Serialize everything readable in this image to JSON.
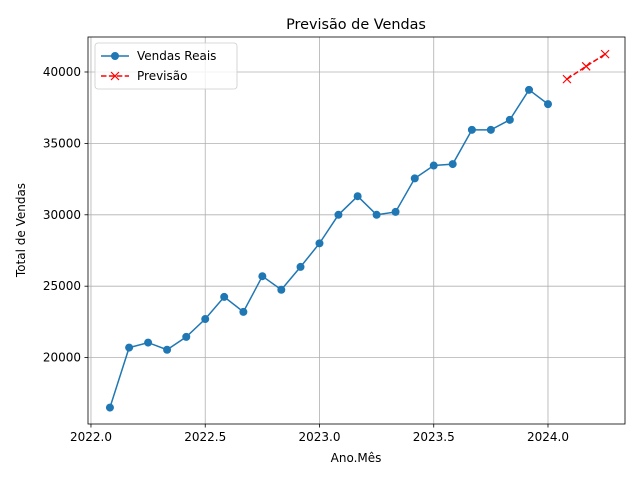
{
  "chart_data": {
    "type": "line",
    "title": "Previsão de Vendas",
    "xlabel": "Ano.Mês",
    "ylabel": "Total de Vendas",
    "xlim": [
      2021.987,
      2024.337
    ],
    "ylim": [
      15350,
      42450
    ],
    "x_ticks": [
      "2022.0",
      "2022.5",
      "2023.0",
      "2023.5",
      "2024.0"
    ],
    "y_ticks": [
      "20000",
      "25000",
      "30000",
      "35000",
      "40000"
    ],
    "x_tick_values": [
      2022.0,
      2022.5,
      2023.0,
      2023.5,
      2024.0
    ],
    "y_tick_values": [
      20000,
      25000,
      30000,
      35000,
      40000
    ],
    "grid": true,
    "legend_position": "top-left",
    "series": [
      {
        "name": "Vendas Reais",
        "color": "#1f77b4",
        "line_style": "solid",
        "marker": "circle",
        "x": [
          2022.083,
          2022.167,
          2022.25,
          2022.333,
          2022.417,
          2022.5,
          2022.583,
          2022.667,
          2022.75,
          2022.833,
          2022.917,
          2023.0,
          2023.083,
          2023.167,
          2023.25,
          2023.333,
          2023.417,
          2023.5,
          2023.583,
          2023.667,
          2023.75,
          2023.833,
          2023.917,
          2024.0
        ],
        "values": [
          16500,
          20700,
          21050,
          20550,
          21450,
          22700,
          24250,
          23200,
          25700,
          24750,
          26350,
          28000,
          30000,
          31300,
          30000,
          30200,
          32550,
          33450,
          33550,
          35950,
          35950,
          36650,
          38750,
          37750
        ]
      },
      {
        "name": "Previsão",
        "color": "#ff0000",
        "line_style": "dashed",
        "marker": "x",
        "x": [
          2024.083,
          2024.167,
          2024.25
        ],
        "values": [
          39500,
          40400,
          41250
        ]
      }
    ]
  }
}
